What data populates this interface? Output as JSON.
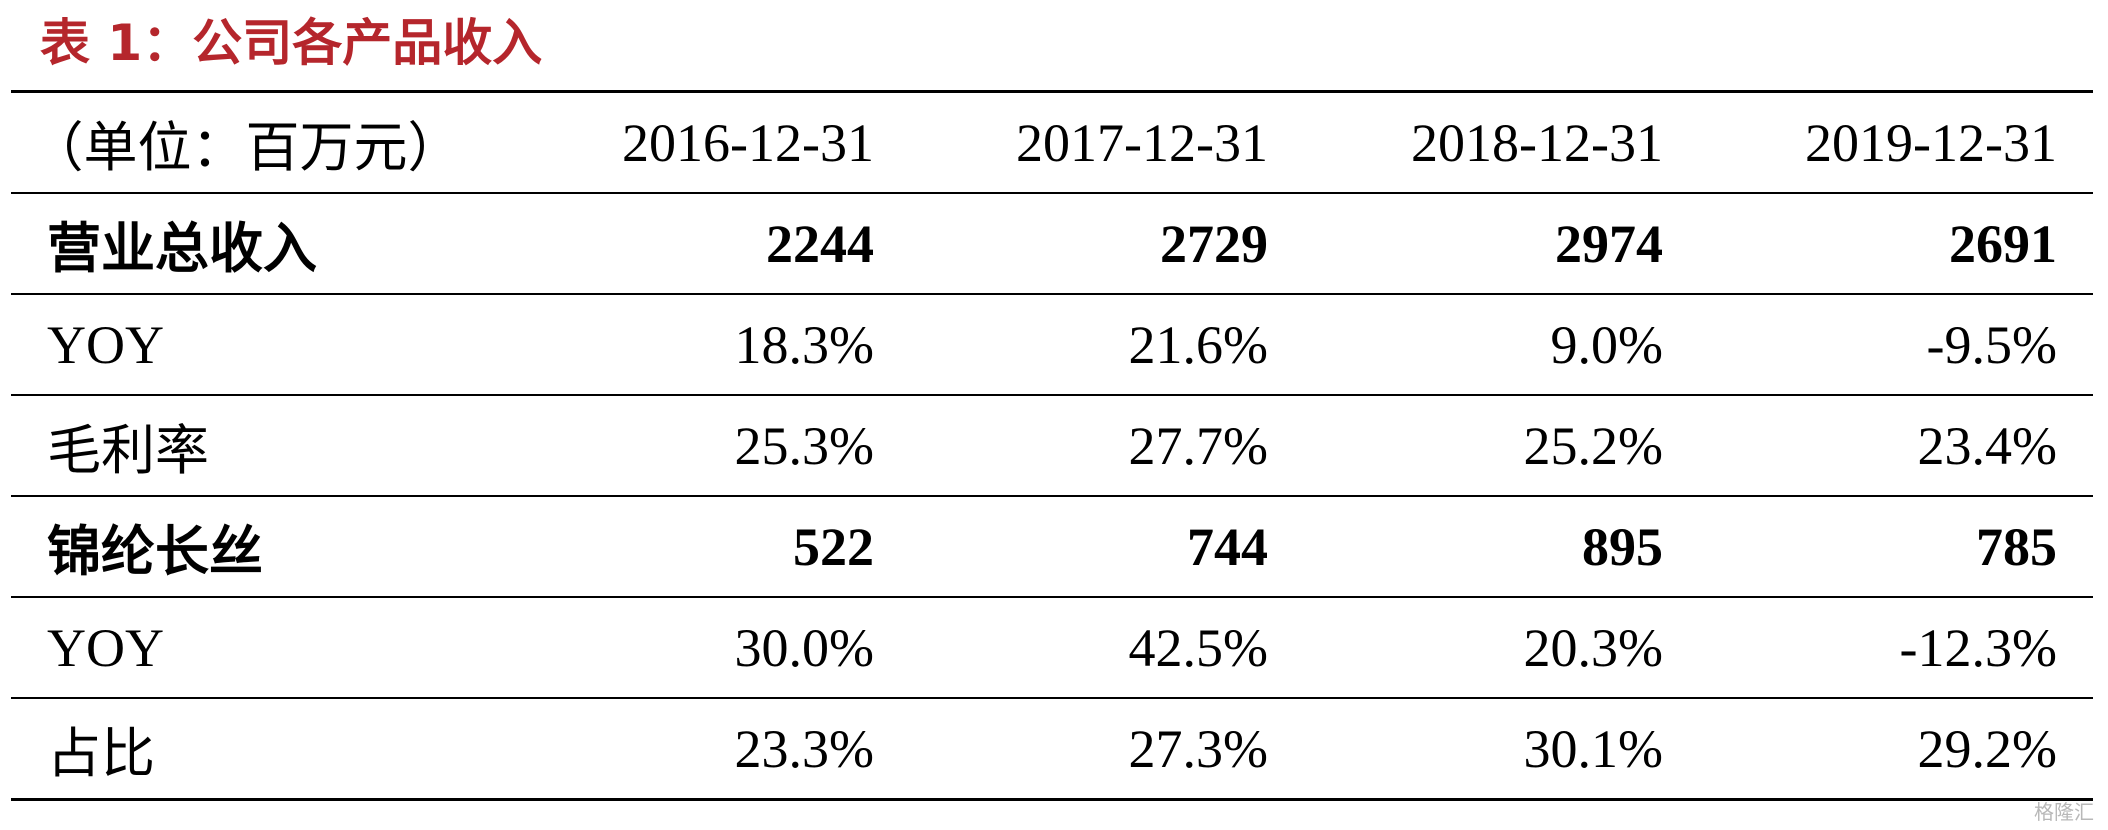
{
  "header": {
    "title": "表 1：公司各产品收入"
  },
  "table": {
    "columns": [
      "（单位：百万元）",
      "2016-12-31",
      "2017-12-31",
      "2018-12-31",
      "2019-12-31"
    ],
    "rows": [
      [
        "营业总收入",
        "2244",
        "2729",
        "2974",
        "2691"
      ],
      [
        "YOY",
        "18.3%",
        "21.6%",
        "9.0%",
        "-9.5%"
      ],
      [
        "毛利率",
        "25.3%",
        "27.7%",
        "25.2%",
        "23.4%"
      ],
      [
        "锦纶长丝",
        "522",
        "744",
        "895",
        "785"
      ],
      [
        "YOY",
        "30.0%",
        "42.5%",
        "20.3%",
        "-12.3%"
      ],
      [
        "占比",
        "23.3%",
        "27.3%",
        "30.1%",
        "29.2%"
      ]
    ]
  },
  "watermark": "格隆汇"
}
